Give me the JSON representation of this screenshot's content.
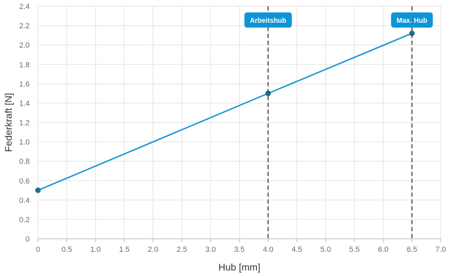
{
  "chart_data": {
    "type": "line",
    "xlabel": "Hub [mm]",
    "ylabel": "Federkraft [N]",
    "xlim": [
      0,
      7.0
    ],
    "ylim": [
      0,
      2.4
    ],
    "x_ticks": [
      "0",
      "0.5",
      "1.0",
      "1.5",
      "2.0",
      "2.5",
      "3.0",
      "3.5",
      "4.0",
      "4.5",
      "5.0",
      "5.5",
      "6.0",
      "6.5",
      "7.0"
    ],
    "y_ticks": [
      "0",
      "0.2",
      "0.4",
      "0.6",
      "0.8",
      "1.0",
      "1.2",
      "1.4",
      "1.6",
      "1.8",
      "2.0",
      "2.2",
      "2.4"
    ],
    "grid": true,
    "series": [
      {
        "points": [
          {
            "x": 0,
            "y": 0.5
          },
          {
            "x": 4.0,
            "y": 1.5
          },
          {
            "x": 6.5,
            "y": 2.12
          }
        ],
        "color": "#1a96d3",
        "marker_color": "#1b6f93"
      }
    ],
    "annotations": [
      {
        "label": "Arbeitshub",
        "x": 4.0
      },
      {
        "label": "Max. Hub",
        "x": 6.5
      }
    ],
    "colors": {
      "grid": "#e3e3e3",
      "axis": "#b8b8b8",
      "badge": "#0e95d6",
      "dashed": "#444444"
    }
  }
}
